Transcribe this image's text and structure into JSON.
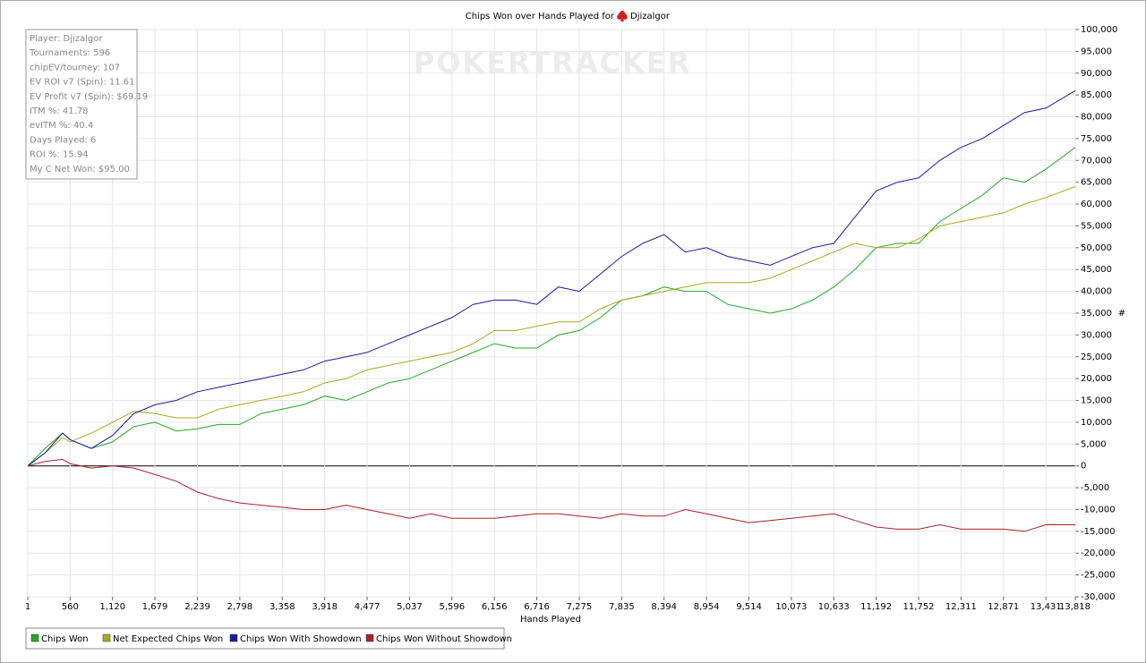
{
  "chart_data": {
    "type": "line",
    "title": "Chips Won over Hands Played for",
    "player": "Djizalgor",
    "watermark": "POKERTRACKER",
    "stats": [
      "Player: Djizalgor",
      "Tournaments: 596",
      "chipEV/tourney: 107",
      "EV ROI v7 (Spin): 11.61",
      "EV Profit v7 (Spin): $69.19",
      "ITM %: 41.78",
      "evITM %: 40.4",
      "Days Played: 6",
      "ROI %: 15.94",
      "My C Net Won: $95.00"
    ],
    "x_label": "Hands Played",
    "y_label": "#",
    "xlim": [
      1,
      13818
    ],
    "ylim": [
      -30000,
      100000
    ],
    "grid": true,
    "xticks": [
      1,
      {
        "value": 560,
        "label": "560"
      },
      {
        "value": 1120,
        "label": "1,120"
      },
      {
        "value": 1679,
        "label": "1,679"
      },
      {
        "value": 2239,
        "label": "2,239"
      },
      {
        "value": 2798,
        "label": "2,798"
      },
      {
        "value": 3358,
        "label": "3,358"
      },
      {
        "value": 3918,
        "label": "3,918"
      },
      {
        "value": 4477,
        "label": "4,477"
      },
      {
        "value": 5037,
        "label": "5,037"
      },
      {
        "value": 5596,
        "label": "5,596"
      },
      {
        "value": 6156,
        "label": "6,156"
      },
      {
        "value": 6716,
        "label": "6,716"
      },
      {
        "value": 7275,
        "label": "7,275"
      },
      {
        "value": 7835,
        "label": "7,835"
      },
      {
        "value": 8394,
        "label": "8,394"
      },
      {
        "value": 8954,
        "label": "8,954"
      },
      {
        "value": 9514,
        "label": "9,514"
      },
      {
        "value": 10073,
        "label": "10,073"
      },
      {
        "value": 10633,
        "label": "10,633"
      },
      {
        "value": 11192,
        "label": "11,192"
      },
      {
        "value": 11752,
        "label": "11,752"
      },
      {
        "value": 12311,
        "label": "12,311"
      },
      {
        "value": 12871,
        "label": "12,871"
      },
      {
        "value": 13431,
        "label": "13,431"
      },
      {
        "value": 13818,
        "label": "13,818"
      }
    ],
    "yticks": [
      {
        "value": 100000,
        "label": "100,000"
      },
      {
        "value": 95000,
        "label": "95,000"
      },
      {
        "value": 90000,
        "label": "90,000"
      },
      {
        "value": 85000,
        "label": "85,000"
      },
      {
        "value": 80000,
        "label": "80,000"
      },
      {
        "value": 75000,
        "label": "75,000"
      },
      {
        "value": 70000,
        "label": "70,000"
      },
      {
        "value": 65000,
        "label": "65,000"
      },
      {
        "value": 60000,
        "label": "60,000"
      },
      {
        "value": 55000,
        "label": "55,000"
      },
      {
        "value": 50000,
        "label": "50,000"
      },
      {
        "value": 45000,
        "label": "45,000"
      },
      {
        "value": 40000,
        "label": "40,000"
      },
      {
        "value": 35000,
        "label": "35,000"
      },
      {
        "value": 30000,
        "label": "30,000"
      },
      {
        "value": 25000,
        "label": "25,000"
      },
      {
        "value": 20000,
        "label": "20,000"
      },
      {
        "value": 15000,
        "label": "15,000"
      },
      {
        "value": 10000,
        "label": "10,000"
      },
      {
        "value": 5000,
        "label": "5,000"
      },
      0,
      {
        "value": -5000,
        "label": "-5,000"
      },
      {
        "value": -10000,
        "label": "-10,000"
      },
      {
        "value": -15000,
        "label": "-15,000"
      },
      {
        "value": -20000,
        "label": "-20,000"
      },
      {
        "value": -25000,
        "label": "-25,000"
      },
      {
        "value": -30000,
        "label": "-30,000"
      }
    ],
    "x": [
      1,
      230,
      460,
      560,
      840,
      1120,
      1400,
      1679,
      1960,
      2239,
      2520,
      2798,
      3078,
      3358,
      3638,
      3918,
      4200,
      4477,
      4757,
      5037,
      5316,
      5596,
      5876,
      6156,
      6436,
      6716,
      7000,
      7275,
      7555,
      7835,
      8114,
      8394,
      8674,
      8954,
      9234,
      9514,
      9794,
      10073,
      10353,
      10633,
      10912,
      11192,
      11472,
      11752,
      12031,
      12311,
      12591,
      12871,
      13151,
      13431,
      13818
    ],
    "series": [
      {
        "name": "Chips Won",
        "color": "#22aa22",
        "values": [
          0,
          4000,
          7500,
          6000,
          4000,
          5500,
          9000,
          10000,
          8000,
          8500,
          9500,
          9500,
          12000,
          13000,
          14000,
          16000,
          15000,
          17000,
          19000,
          20000,
          22000,
          24000,
          26000,
          28000,
          27000,
          27000,
          30000,
          31000,
          34000,
          38000,
          39000,
          41000,
          40000,
          40000,
          37000,
          36000,
          35000,
          36000,
          38000,
          41000,
          45000,
          50000,
          51000,
          51000,
          56000,
          59000,
          62000,
          66000,
          65000,
          68000,
          73000
        ]
      },
      {
        "name": "Net Expected Chips Won",
        "color": "#aaaa22",
        "values": [
          0,
          3000,
          6500,
          5500,
          7500,
          10000,
          12500,
          12000,
          11000,
          11000,
          13000,
          14000,
          15000,
          16000,
          17000,
          19000,
          20000,
          22000,
          23000,
          24000,
          25000,
          26000,
          28000,
          31000,
          31000,
          32000,
          33000,
          33000,
          36000,
          38000,
          39000,
          40000,
          41000,
          42000,
          42000,
          42000,
          43000,
          45000,
          47000,
          49000,
          51000,
          50000,
          50000,
          52000,
          55000,
          56000,
          57000,
          58000,
          60000,
          61500,
          64000
        ]
      },
      {
        "name": "Chips Won With Showdown",
        "color": "#1a1aa0",
        "values": [
          0,
          3000,
          7500,
          6000,
          4000,
          7000,
          12000,
          14000,
          15000,
          17000,
          18000,
          19000,
          20000,
          21000,
          22000,
          24000,
          25000,
          26000,
          28000,
          30000,
          32000,
          34000,
          37000,
          38000,
          38000,
          37000,
          41000,
          40000,
          44000,
          48000,
          51000,
          53000,
          49000,
          50000,
          48000,
          47000,
          46000,
          48000,
          50000,
          51000,
          57000,
          63000,
          65000,
          66000,
          70000,
          73000,
          75000,
          78000,
          81000,
          82000,
          86000
        ]
      },
      {
        "name": "Chips Won Without Showdown",
        "color": "#aa2222",
        "values": [
          0,
          1000,
          1500,
          500,
          -500,
          0,
          -500,
          -2000,
          -3500,
          -6000,
          -7500,
          -8500,
          -9000,
          -9500,
          -10000,
          -10000,
          -9000,
          -10000,
          -11000,
          -12000,
          -11000,
          -12000,
          -12000,
          -12000,
          -11500,
          -11000,
          -11000,
          -11500,
          -12000,
          -11000,
          -11500,
          -11500,
          -10000,
          -11000,
          -12000,
          -13000,
          -12500,
          -12000,
          -11500,
          -11000,
          -12500,
          -14000,
          -14500,
          -14500,
          -13500,
          -14500,
          -14500,
          -14500,
          -15000,
          -13500,
          -13500
        ]
      }
    ]
  }
}
